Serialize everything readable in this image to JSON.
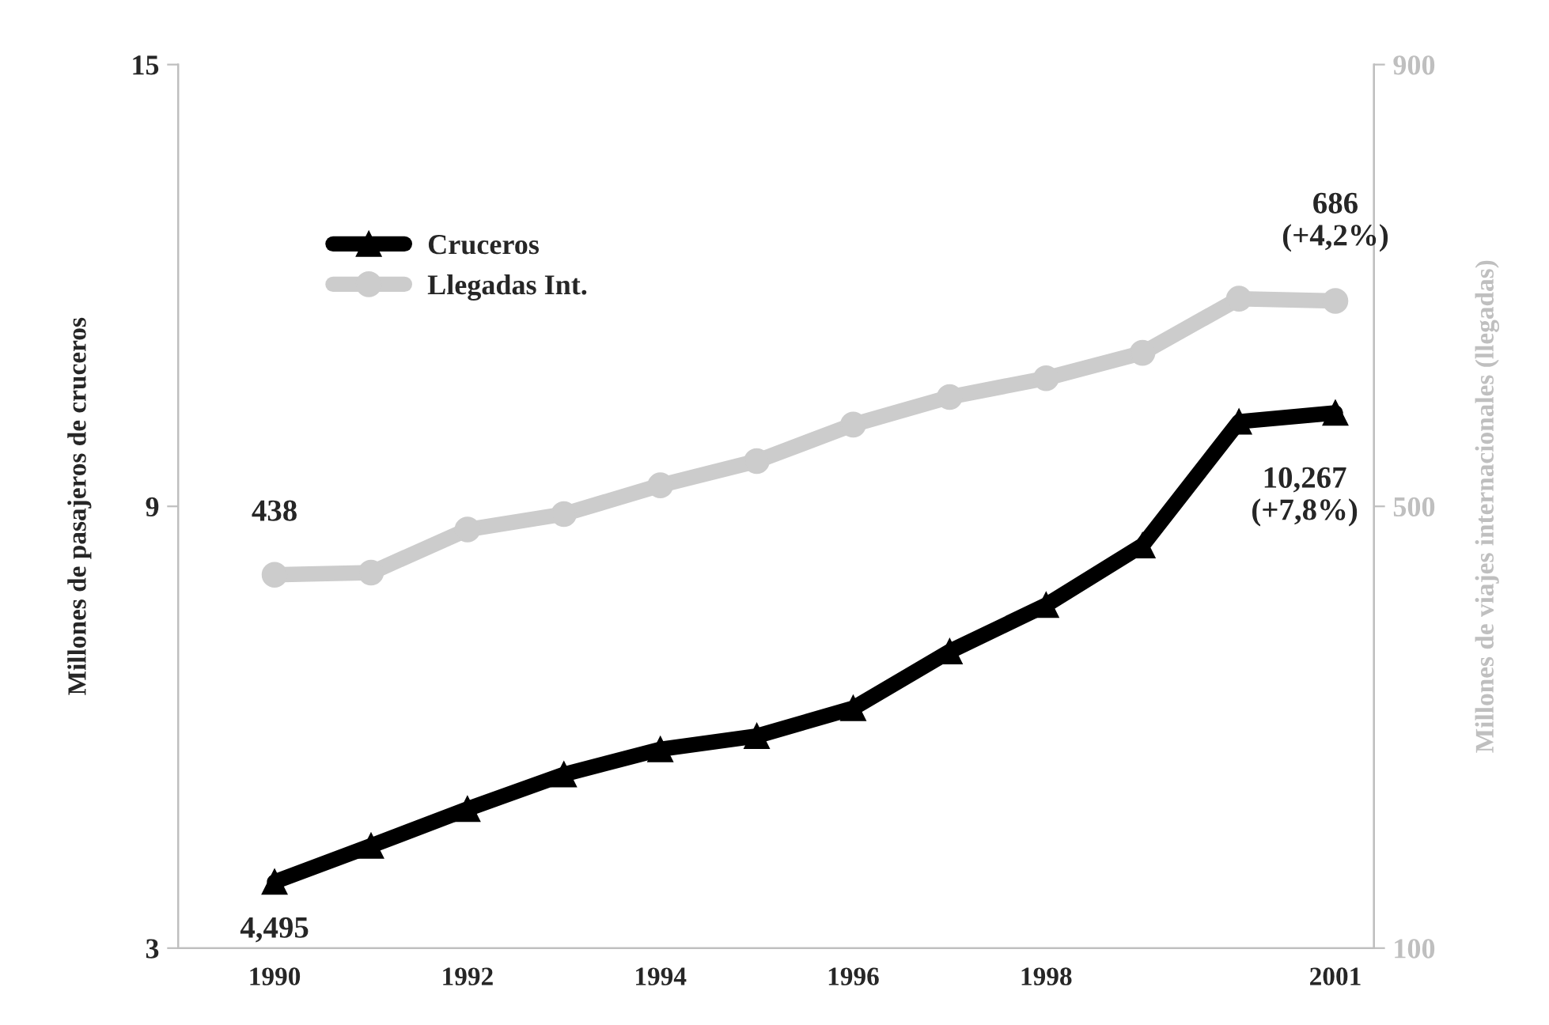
{
  "chart_data": {
    "type": "line",
    "xlabel": null,
    "ylabel": "Millones de pasajeros de cruceros",
    "y2label": "Millones de viajes internacionales (llegadas)",
    "x": [
      1990,
      1991,
      1992,
      1993,
      1994,
      1995,
      1996,
      1997,
      1998,
      1999,
      2000,
      2001
    ],
    "xlim": [
      1989,
      2001.4
    ],
    "xticks": [
      1990,
      1992,
      1994,
      1996,
      1998,
      2001
    ],
    "ylim": [
      3,
      15
    ],
    "yticks": [
      3,
      9,
      15
    ],
    "y2lim": [
      100,
      900
    ],
    "y2ticks": [
      100,
      500,
      900
    ],
    "series": [
      {
        "name": "Cruceros",
        "color": "#000000",
        "marker": "triangle",
        "values": [
          3.9,
          4.39,
          4.89,
          5.36,
          5.7,
          5.88,
          6.26,
          7.03,
          7.66,
          8.47,
          10.15,
          10.27
        ]
      },
      {
        "name": "Llegadas Int.",
        "color": "#cccccc",
        "marker": "circle",
        "axis": "y2",
        "values": [
          438,
          440,
          479,
          493,
          519,
          541,
          574,
          599,
          616,
          639,
          688,
          686
        ]
      }
    ],
    "annotations": [
      "438",
      {
        "text": "4,495",
        "x": 1990,
        "y": 3.9
      },
      "686\n(+4,2%)",
      {
        "text": "10,267\n(+7,8%)",
        "x": 2001,
        "y": 10.27
      }
    ],
    "legend": "top left",
    "grid": false,
    "line_style": "solid"
  }
}
